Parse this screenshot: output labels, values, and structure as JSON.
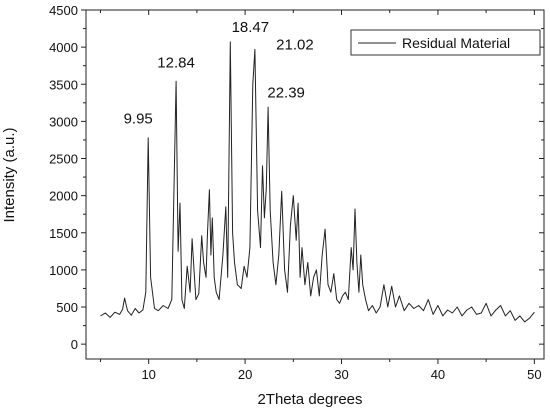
{
  "chart_data": {
    "type": "line",
    "title": "",
    "xlabel": "2Theta degrees",
    "ylabel": "Intensity (a.u.)",
    "xlim": [
      3.5,
      51
    ],
    "ylim": [
      -200,
      4500
    ],
    "xticks": [
      10,
      20,
      30,
      40,
      50
    ],
    "yticks": [
      0,
      500,
      1000,
      1500,
      2000,
      2500,
      3000,
      3500,
      4000,
      4500
    ],
    "grid": false,
    "legend_position": "top-right",
    "line_color": "#222222",
    "series": [
      {
        "name": "Residual Material",
        "x": [
          5.0,
          5.5,
          6.0,
          6.5,
          7.0,
          7.3,
          7.5,
          7.8,
          8.2,
          8.6,
          9.0,
          9.4,
          9.7,
          9.95,
          10.2,
          10.6,
          11.0,
          11.5,
          12.0,
          12.4,
          12.84,
          13.05,
          13.25,
          13.45,
          13.7,
          14.0,
          14.3,
          14.5,
          14.7,
          14.9,
          15.2,
          15.5,
          15.7,
          15.95,
          16.1,
          16.3,
          16.45,
          16.6,
          16.8,
          17.0,
          17.3,
          17.7,
          18.0,
          18.2,
          18.47,
          18.7,
          18.9,
          19.2,
          19.6,
          19.9,
          20.2,
          20.5,
          20.8,
          21.02,
          21.3,
          21.6,
          21.8,
          22.0,
          22.2,
          22.39,
          22.6,
          22.9,
          23.2,
          23.5,
          23.8,
          24.1,
          24.4,
          24.7,
          25.0,
          25.3,
          25.5,
          25.7,
          25.9,
          26.2,
          26.5,
          26.8,
          27.1,
          27.4,
          27.7,
          28.0,
          28.3,
          28.6,
          28.9,
          29.2,
          29.5,
          29.8,
          30.1,
          30.4,
          30.7,
          31.0,
          31.2,
          31.4,
          31.6,
          31.8,
          32.0,
          32.2,
          32.5,
          32.8,
          33.2,
          33.6,
          34.0,
          34.4,
          34.8,
          35.2,
          35.6,
          36.0,
          36.5,
          37.0,
          37.5,
          38.0,
          38.5,
          39.0,
          39.5,
          40.0,
          40.5,
          41.0,
          41.5,
          42.0,
          42.5,
          43.0,
          43.5,
          44.0,
          44.5,
          45.0,
          45.5,
          46.0,
          46.5,
          47.0,
          47.5,
          48.0,
          48.5,
          49.0,
          49.5,
          50.0
        ],
        "y": [
          380,
          420,
          360,
          430,
          400,
          470,
          620,
          450,
          390,
          480,
          420,
          460,
          700,
          2780,
          900,
          480,
          450,
          520,
          480,
          600,
          3540,
          1250,
          1900,
          600,
          480,
          1050,
          700,
          1420,
          1000,
          600,
          680,
          1460,
          1100,
          900,
          1500,
          2080,
          1200,
          1700,
          900,
          700,
          600,
          1200,
          1850,
          900,
          4070,
          1500,
          1100,
          800,
          750,
          1050,
          900,
          1300,
          3500,
          3970,
          1800,
          1300,
          2400,
          1700,
          2100,
          3190,
          1800,
          1100,
          800,
          1200,
          2060,
          1000,
          700,
          1600,
          2000,
          1400,
          1900,
          900,
          1300,
          800,
          1100,
          650,
          900,
          1000,
          650,
          1200,
          1550,
          800,
          700,
          950,
          600,
          550,
          650,
          700,
          600,
          1300,
          1000,
          1820,
          1100,
          700,
          1200,
          800,
          600,
          450,
          520,
          420,
          500,
          800,
          500,
          780,
          500,
          650,
          450,
          550,
          480,
          520,
          450,
          600,
          400,
          520,
          380,
          460,
          420,
          500,
          380,
          460,
          500,
          400,
          420,
          550,
          380,
          460,
          520,
          380,
          450,
          320,
          380,
          300,
          350,
          430
        ]
      }
    ],
    "annotations": [
      {
        "text": "9.95",
        "x": 9.95,
        "y": 2780
      },
      {
        "text": "12.84",
        "x": 12.84,
        "y": 3540
      },
      {
        "text": "18.47",
        "x": 18.47,
        "y": 4070
      },
      {
        "text": "21.02",
        "x": 21.02,
        "y": 3970
      },
      {
        "text": "22.39",
        "x": 22.39,
        "y": 3190
      }
    ]
  }
}
